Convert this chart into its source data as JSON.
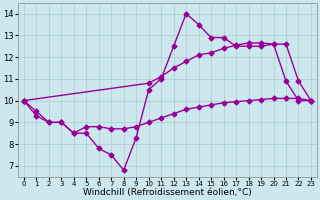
{
  "background_color": "#cce8ee",
  "grid_color": "#aacccc",
  "line_color": "#990099",
  "marker": "D",
  "marker_size": 2.5,
  "line_width": 1.0,
  "xlabel": "Windchill (Refroidissement éolien,°C)",
  "xlabel_fontsize": 6.5,
  "xlim": [
    -0.5,
    23.5
  ],
  "ylim": [
    6.5,
    14.5
  ],
  "yticks": [
    7,
    8,
    9,
    10,
    11,
    12,
    13,
    14
  ],
  "xticks": [
    0,
    1,
    2,
    3,
    4,
    5,
    6,
    7,
    8,
    9,
    10,
    11,
    12,
    13,
    14,
    15,
    16,
    17,
    18,
    19,
    20,
    21,
    22,
    23
  ],
  "x_values": [
    0,
    1,
    2,
    3,
    4,
    5,
    6,
    7,
    8,
    9,
    10,
    11,
    12,
    13,
    14,
    15,
    16,
    17,
    18,
    19,
    20,
    21,
    22,
    23
  ],
  "line1_y": [
    10.0,
    9.5,
    9.0,
    9.0,
    8.5,
    8.5,
    7.8,
    7.5,
    6.8,
    8.3,
    10.5,
    11.0,
    12.5,
    14.0,
    13.5,
    12.9,
    12.9,
    12.5,
    12.5,
    12.5,
    12.6,
    10.9,
    10.0,
    10.0
  ],
  "line2_x": [
    0,
    10,
    11,
    12,
    13,
    14,
    15,
    16,
    17,
    18,
    19,
    20,
    21,
    22,
    23
  ],
  "line2_y": [
    10.0,
    10.8,
    11.1,
    11.5,
    11.8,
    12.1,
    12.2,
    12.4,
    12.55,
    12.65,
    12.65,
    12.6,
    12.6,
    10.9,
    10.0
  ],
  "line3_x": [
    0,
    1,
    2,
    3,
    4,
    5,
    6,
    7,
    8,
    9,
    10,
    11,
    12,
    13,
    14,
    15,
    16,
    17,
    18,
    19,
    20,
    21,
    22,
    23
  ],
  "line3_y": [
    10.0,
    9.3,
    9.0,
    9.0,
    8.5,
    8.8,
    8.8,
    8.7,
    8.7,
    8.8,
    9.0,
    9.2,
    9.4,
    9.6,
    9.7,
    9.8,
    9.9,
    9.95,
    10.0,
    10.05,
    10.1,
    10.1,
    10.1,
    10.0
  ]
}
